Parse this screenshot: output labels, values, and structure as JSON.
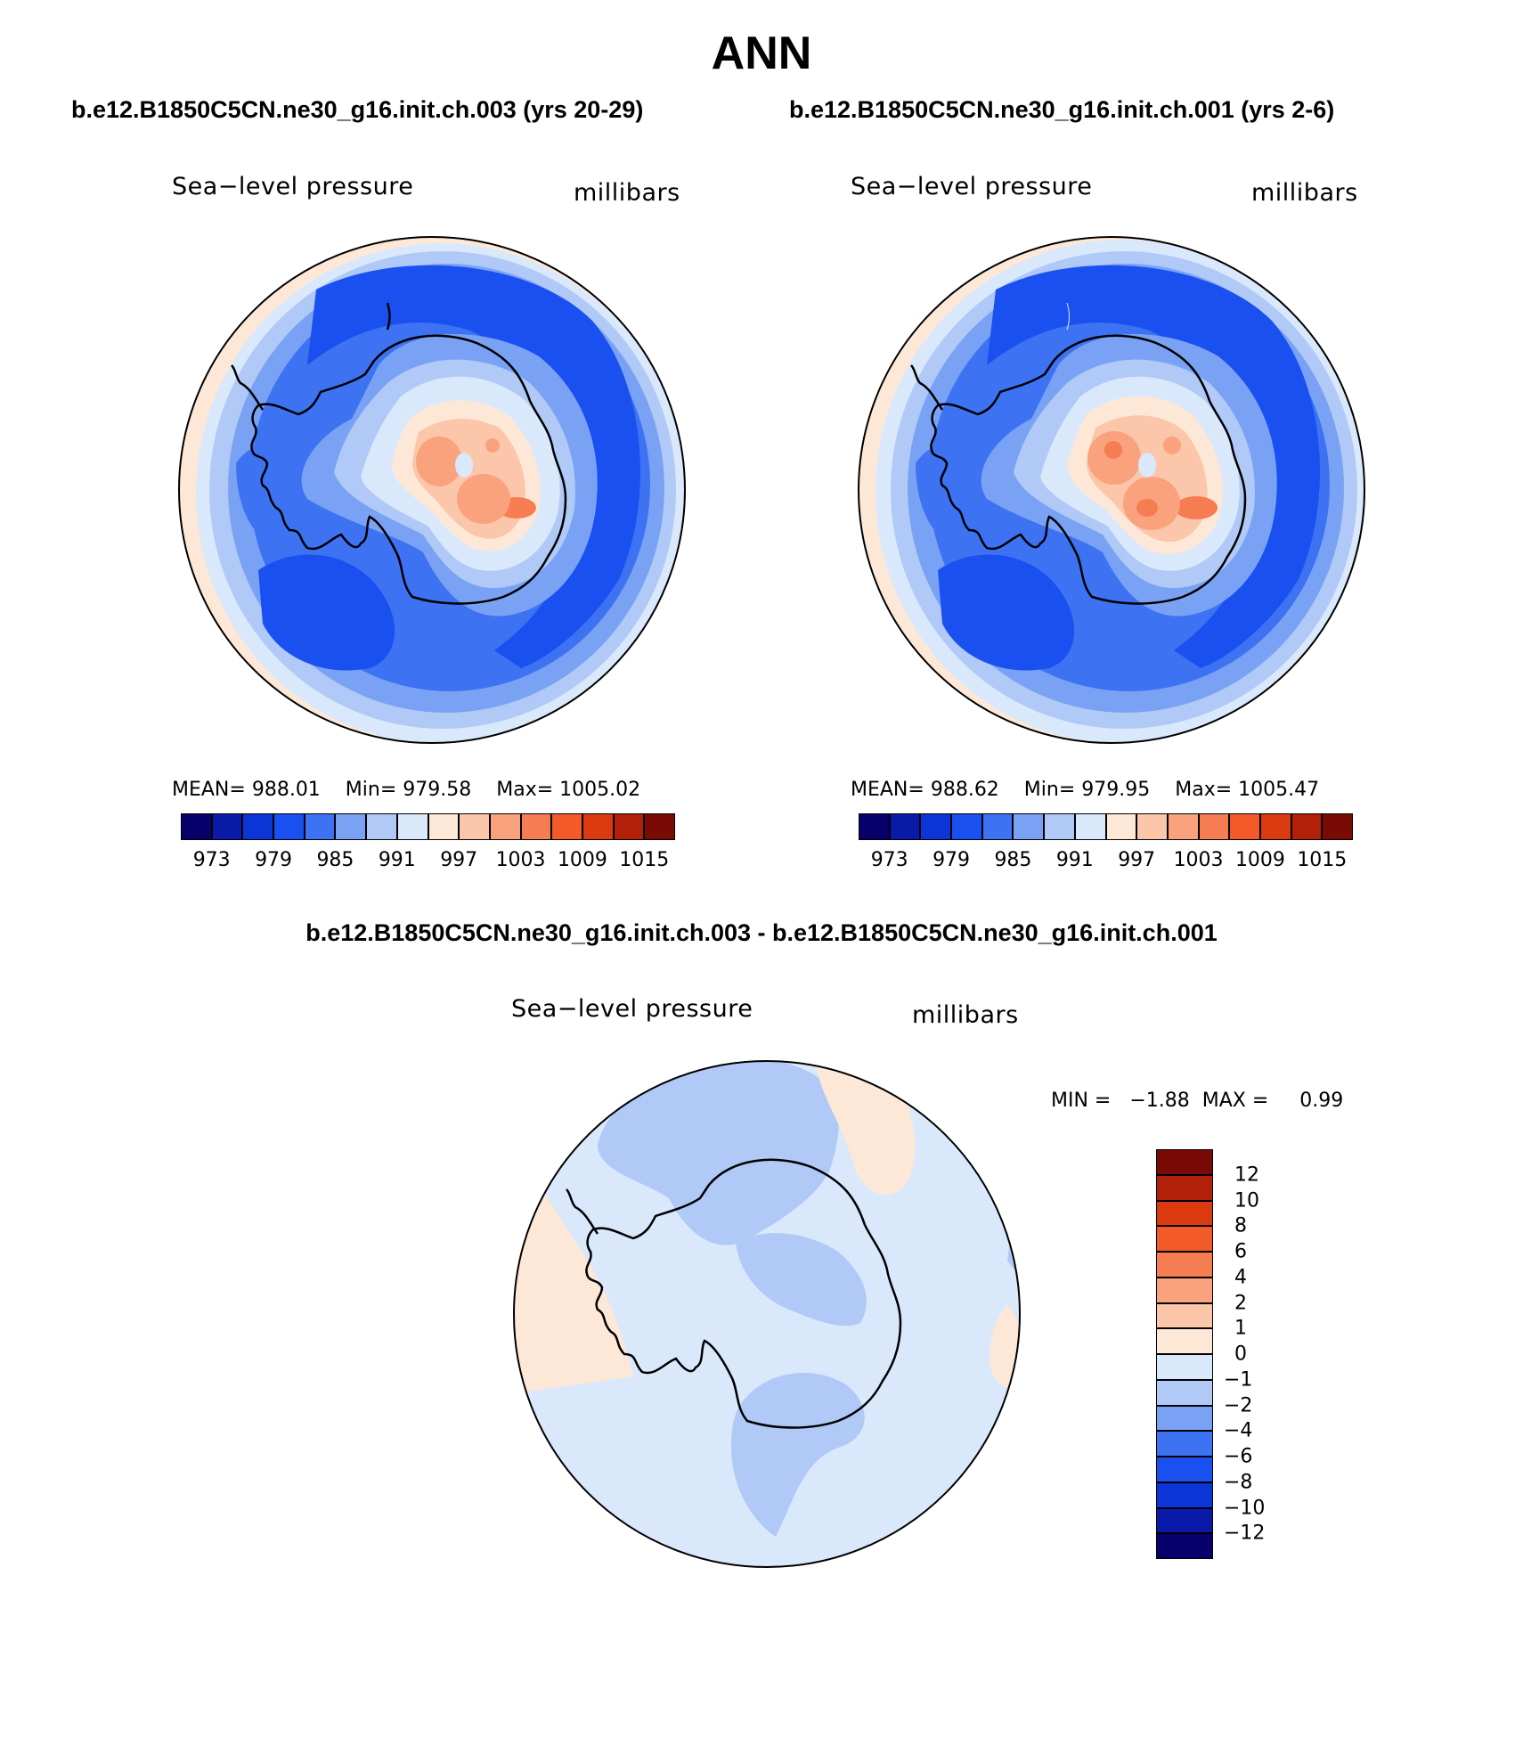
{
  "figure": {
    "title": "ANN"
  },
  "panels": [
    {
      "case_title": "b.e12.B1850C5CN.ne30_g16.init.ch.003 (yrs 20-29)",
      "left_label": "Sea−level pressure",
      "right_label": "millibars",
      "stats": {
        "mean_label": "MEAN=",
        "mean": "988.01",
        "min_label": "Min=",
        "min": "979.58",
        "max_label": "Max=",
        "max": "1005.02"
      }
    },
    {
      "case_title": "b.e12.B1850C5CN.ne30_g16.init.ch.001 (yrs 2-6)",
      "left_label": "Sea−level pressure",
      "right_label": "millibars",
      "stats": {
        "mean_label": "MEAN=",
        "mean": "988.62",
        "min_label": "Min=",
        "min": "979.95",
        "max_label": "Max=",
        "max": "1005.47"
      }
    },
    {
      "case_title": "b.e12.B1850C5CN.ne30_g16.init.ch.003 - b.e12.B1850C5CN.ne30_g16.init.ch.001",
      "left_label": "Sea−level pressure",
      "right_label": "millibars",
      "stats": {
        "min_label": "MIN =",
        "min": "−1.88",
        "max_label": "MAX =",
        "max": "0.99"
      }
    }
  ],
  "colorbars": {
    "abs": {
      "ticks": [
        "973",
        "979",
        "985",
        "991",
        "997",
        "1003",
        "1009",
        "1015"
      ],
      "colors": [
        "#08006b",
        "#0a1aa8",
        "#0b35d6",
        "#1a50f0",
        "#3d72f2",
        "#7aa2f4",
        "#b0c9f7",
        "#dae8fb",
        "#fde8d8",
        "#fcc6aa",
        "#f9a27d",
        "#f67c52",
        "#f25a2a",
        "#db3a10",
        "#b2200a",
        "#7a0a05"
      ]
    },
    "diff": {
      "ticks": [
        "12",
        "10",
        "8",
        "6",
        "4",
        "2",
        "1",
        "0",
        "−1",
        "−2",
        "−4",
        "−6",
        "−8",
        "−10",
        "−12"
      ],
      "colors": [
        "#7a0a05",
        "#b2200a",
        "#db3a10",
        "#f25a2a",
        "#f67c52",
        "#f9a27d",
        "#fcc6aa",
        "#fde8d8",
        "#dae8fb",
        "#b0c9f7",
        "#7aa2f4",
        "#3d72f2",
        "#1a50f0",
        "#0b35d6",
        "#0a1aa8",
        "#08006b"
      ]
    }
  }
}
